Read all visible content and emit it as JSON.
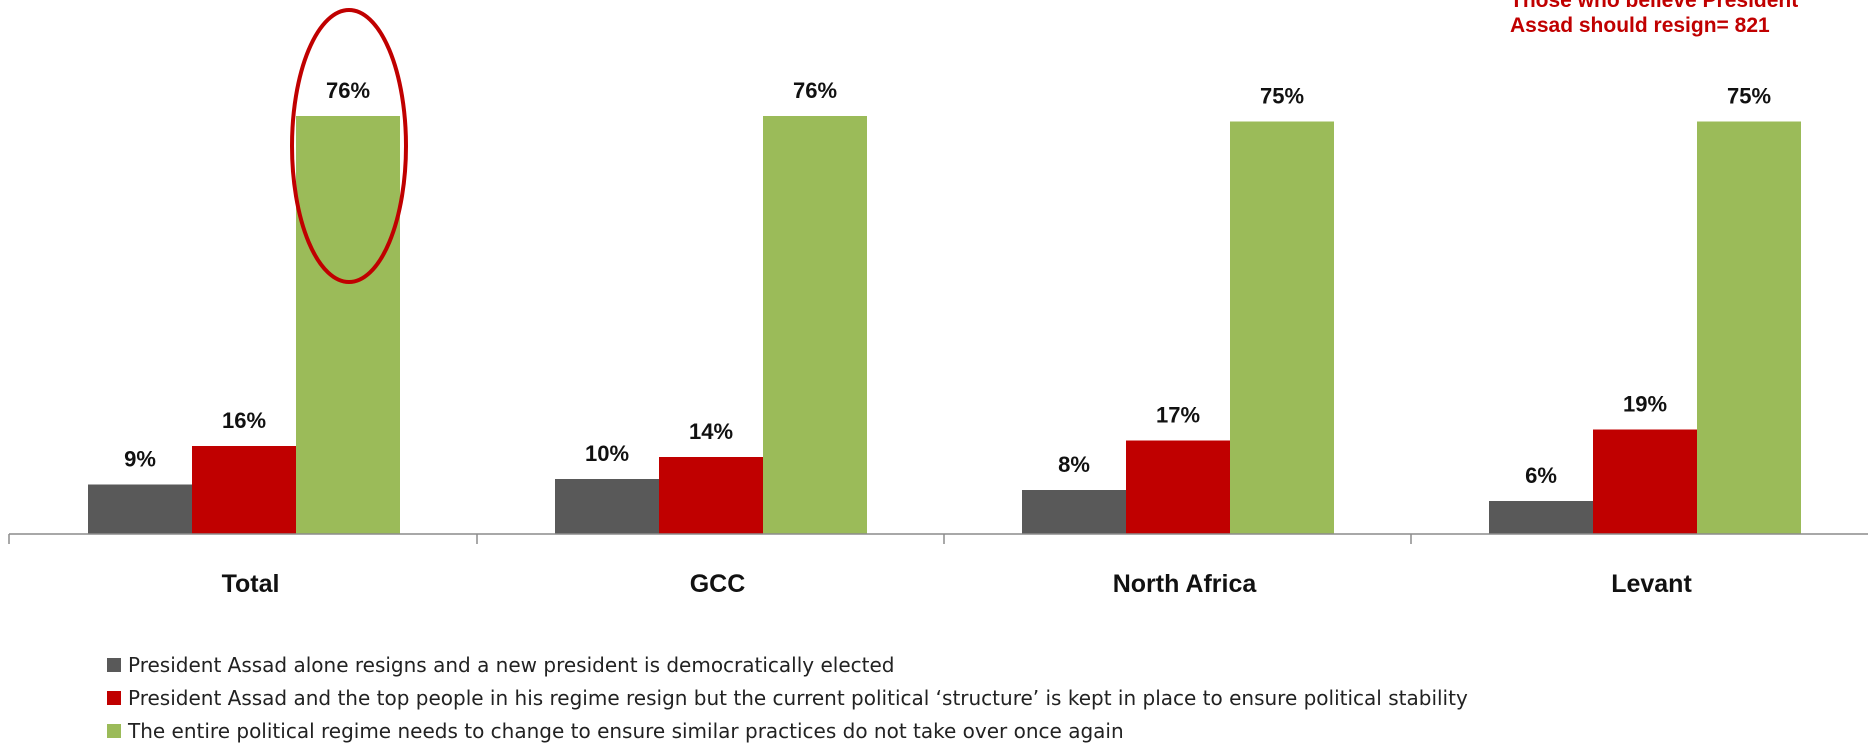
{
  "note": {
    "line1": "Those who believe President",
    "line2": "Assad should resign= 821"
  },
  "chart_data": {
    "type": "bar",
    "categories": [
      "Total",
      "GCC",
      "North Africa",
      "Levant"
    ],
    "series": [
      {
        "name": "President Assad alone resigns and a new president is democratically elected",
        "color": "#595959",
        "values": [
          9,
          10,
          8,
          6
        ],
        "labels": [
          "9%",
          "10%",
          "8%",
          "6%"
        ]
      },
      {
        "name": "President Assad and the top people in his regime resign but the current political ‘structure’ is kept in place to ensure political stability",
        "color": "#C00000",
        "values": [
          16,
          14,
          17,
          19
        ],
        "labels": [
          "16%",
          "14%",
          "17%",
          "19%"
        ]
      },
      {
        "name": "The entire political regime needs to change to ensure similar practices do not take over once again",
        "color": "#9BBB59",
        "values": [
          76,
          76,
          75,
          75
        ],
        "labels": [
          "76%",
          "76%",
          "75%",
          "75%"
        ]
      }
    ],
    "ylim": [
      0,
      80
    ],
    "grid": false,
    "legend_position": "bottom",
    "highlight": {
      "category": "Total",
      "series_index": 2,
      "shape": "ellipse",
      "color": "#C00000"
    }
  }
}
